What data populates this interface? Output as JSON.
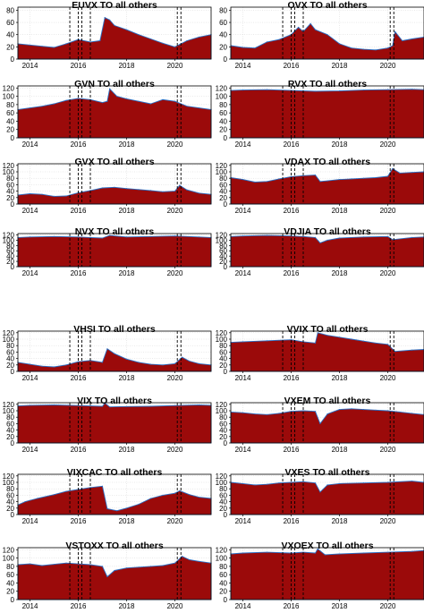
{
  "chart_data": [
    {
      "type": "area",
      "title": "EUVX TO all others",
      "yticks": [
        0,
        20,
        40,
        60,
        80
      ],
      "ylim": [
        0,
        85
      ],
      "xticks": [
        2014,
        2016,
        2018,
        2020
      ],
      "xlim": [
        2013.5,
        2021.5
      ],
      "event_lines": [
        2015.65,
        2016.0,
        2016.15,
        2016.5,
        2020.1,
        2020.25
      ],
      "series": [
        {
          "x": [
            2013.5,
            2014,
            2014.5,
            2015,
            2015.5,
            2016,
            2016.5,
            2016.9,
            2017.1,
            2017.3,
            2017.5,
            2018,
            2018.5,
            2019,
            2019.5,
            2020,
            2020.2,
            2020.5,
            2021,
            2021.5
          ],
          "values": [
            25,
            23,
            21,
            19,
            25,
            32,
            28,
            30,
            68,
            64,
            55,
            48,
            40,
            33,
            26,
            20,
            24,
            30,
            36,
            40
          ]
        }
      ]
    },
    {
      "type": "area",
      "title": "OVX TO all others",
      "yticks": [
        0,
        20,
        40,
        60,
        80
      ],
      "ylim": [
        0,
        85
      ],
      "xticks": [
        2014,
        2016,
        2018,
        2020
      ],
      "xlim": [
        2013.5,
        2021.5
      ],
      "event_lines": [
        2015.65,
        2016.0,
        2016.15,
        2016.5,
        2020.1,
        2020.25
      ],
      "series": [
        {
          "x": [
            2013.5,
            2014,
            2014.5,
            2015,
            2015.5,
            2016,
            2016.3,
            2016.5,
            2016.8,
            2017,
            2017.5,
            2018,
            2018.5,
            2019,
            2019.5,
            2020,
            2020.2,
            2020.3,
            2020.6,
            2021,
            2021.5
          ],
          "values": [
            22,
            19,
            18,
            28,
            32,
            40,
            52,
            45,
            58,
            48,
            40,
            25,
            18,
            16,
            15,
            18,
            22,
            45,
            30,
            33,
            36
          ]
        }
      ]
    },
    {
      "type": "area",
      "title": "GVN TO all others",
      "yticks": [
        0,
        20,
        40,
        60,
        80,
        100,
        120
      ],
      "ylim": [
        0,
        125
      ],
      "xticks": [
        2014,
        2016,
        2018,
        2020
      ],
      "xlim": [
        2013.5,
        2021.5
      ],
      "event_lines": [
        2015.65,
        2016.0,
        2016.15,
        2016.5,
        2020.1,
        2020.25
      ],
      "series": [
        {
          "x": [
            2013.5,
            2014,
            2014.5,
            2015,
            2015.5,
            2016,
            2016.5,
            2017,
            2017.2,
            2017.3,
            2017.6,
            2018,
            2018.5,
            2019,
            2019.5,
            2020,
            2020.5,
            2021,
            2021.5
          ],
          "values": [
            68,
            72,
            76,
            82,
            90,
            95,
            92,
            85,
            88,
            118,
            100,
            94,
            88,
            82,
            92,
            88,
            76,
            72,
            68
          ]
        }
      ]
    },
    {
      "type": "area",
      "title": "RVX TO all others",
      "yticks": [
        0,
        20,
        40,
        60,
        80,
        100,
        120
      ],
      "ylim": [
        0,
        125
      ],
      "xticks": [
        2014,
        2016,
        2018,
        2020
      ],
      "xlim": [
        2013.5,
        2021.5
      ],
      "event_lines": [
        2015.65,
        2016.0,
        2016.15,
        2016.5,
        2020.1,
        2020.25
      ],
      "series": [
        {
          "x": [
            2013.5,
            2014,
            2015,
            2016,
            2017,
            2018,
            2019,
            2020,
            2021,
            2021.5
          ],
          "values": [
            114,
            115,
            116,
            114,
            112,
            113,
            115,
            116,
            117,
            116
          ]
        }
      ]
    },
    {
      "type": "area",
      "title": "GVX TO all others",
      "yticks": [
        0,
        20,
        40,
        60,
        80,
        100,
        120
      ],
      "ylim": [
        0,
        125
      ],
      "xticks": [
        2014,
        2016,
        2018,
        2020
      ],
      "xlim": [
        2013.5,
        2021.5
      ],
      "event_lines": [
        2015.65,
        2016.0,
        2016.15,
        2016.5,
        2020.1,
        2020.25
      ],
      "series": [
        {
          "x": [
            2013.5,
            2014,
            2014.5,
            2015,
            2015.5,
            2016,
            2016.5,
            2017,
            2017.5,
            2018,
            2018.5,
            2019,
            2019.5,
            2020,
            2020.2,
            2020.5,
            2021,
            2021.5
          ],
          "values": [
            28,
            32,
            30,
            24,
            25,
            35,
            42,
            50,
            52,
            48,
            45,
            42,
            38,
            40,
            58,
            44,
            34,
            30
          ]
        }
      ]
    },
    {
      "type": "area",
      "title": "VDAX TO all others",
      "yticks": [
        0,
        20,
        40,
        60,
        80,
        100,
        120
      ],
      "ylim": [
        0,
        125
      ],
      "xticks": [
        2014,
        2016,
        2018,
        2020
      ],
      "xlim": [
        2013.5,
        2021.5
      ],
      "event_lines": [
        2015.65,
        2016.0,
        2016.15,
        2016.5,
        2020.1,
        2020.25
      ],
      "series": [
        {
          "x": [
            2013.5,
            2014,
            2014.5,
            2015,
            2015.5,
            2016,
            2016.5,
            2017,
            2017.2,
            2017.5,
            2018,
            2018.5,
            2019,
            2019.5,
            2020,
            2020.2,
            2020.5,
            2021,
            2021.5
          ],
          "values": [
            82,
            76,
            68,
            70,
            78,
            85,
            88,
            90,
            70,
            72,
            76,
            78,
            80,
            82,
            86,
            110,
            96,
            98,
            100
          ]
        }
      ]
    },
    {
      "type": "area",
      "title": "NVX TO all others",
      "yticks": [
        0,
        20,
        40,
        60,
        80,
        100,
        120
      ],
      "ylim": [
        0,
        125
      ],
      "xticks": [
        2014,
        2016,
        2018,
        2020
      ],
      "xlim": [
        2013.5,
        2021.5
      ],
      "event_lines": [
        2015.65,
        2016.0,
        2016.15,
        2016.5,
        2020.1,
        2020.25
      ],
      "series": [
        {
          "x": [
            2013.5,
            2014,
            2015,
            2016,
            2016.5,
            2017,
            2017.3,
            2018,
            2019,
            2020,
            2021,
            2021.5
          ],
          "values": [
            110,
            112,
            114,
            112,
            110,
            108,
            118,
            112,
            114,
            116,
            112,
            110
          ]
        }
      ]
    },
    {
      "type": "area",
      "title": "VDJIA TO all others",
      "yticks": [
        0,
        20,
        40,
        60,
        80,
        100,
        120
      ],
      "ylim": [
        0,
        125
      ],
      "xticks": [
        2014,
        2016,
        2018,
        2020
      ],
      "xlim": [
        2013.5,
        2021.5
      ],
      "event_lines": [
        2015.65,
        2016.0,
        2016.15,
        2016.5,
        2020.1,
        2020.25
      ],
      "series": [
        {
          "x": [
            2013.5,
            2014,
            2015,
            2016,
            2016.5,
            2017,
            2017.2,
            2017.5,
            2018,
            2019,
            2020,
            2020.2,
            2021,
            2021.5
          ],
          "values": [
            114,
            116,
            118,
            116,
            114,
            110,
            90,
            100,
            108,
            112,
            114,
            102,
            110,
            112
          ]
        }
      ]
    },
    {
      "type": "area",
      "title": "VHSI TO all others",
      "yticks": [
        0,
        20,
        40,
        60,
        80,
        100,
        120
      ],
      "ylim": [
        0,
        125
      ],
      "xticks": [
        2014,
        2016,
        2018,
        2020
      ],
      "xlim": [
        2013.5,
        2021.5
      ],
      "event_lines": [
        2015.65,
        2016.0,
        2016.15,
        2016.5,
        2020.1,
        2020.25
      ],
      "series": [
        {
          "x": [
            2013.5,
            2014,
            2014.5,
            2015,
            2015.5,
            2016,
            2016.5,
            2017,
            2017.2,
            2017.5,
            2018,
            2018.5,
            2019,
            2019.5,
            2020,
            2020.3,
            2020.6,
            2021,
            2021.5
          ],
          "values": [
            28,
            22,
            16,
            14,
            20,
            30,
            34,
            28,
            70,
            55,
            38,
            28,
            22,
            20,
            24,
            44,
            32,
            24,
            20
          ]
        }
      ]
    },
    {
      "type": "area",
      "title": "VVIX TO all others",
      "yticks": [
        0,
        20,
        40,
        60,
        80,
        100,
        120
      ],
      "ylim": [
        0,
        125
      ],
      "xticks": [
        2014,
        2016,
        2018,
        2020
      ],
      "xlim": [
        2013.5,
        2021.5
      ],
      "event_lines": [
        2015.65,
        2016.0,
        2016.15,
        2016.5,
        2020.1,
        2020.25
      ],
      "series": [
        {
          "x": [
            2013.5,
            2014,
            2015,
            2016,
            2016.5,
            2017,
            2017.1,
            2017.5,
            2018,
            2018.5,
            2019,
            2019.5,
            2020,
            2020.3,
            2021,
            2021.5
          ],
          "values": [
            90,
            92,
            95,
            98,
            92,
            88,
            120,
            112,
            106,
            100,
            94,
            88,
            84,
            62,
            66,
            68
          ]
        }
      ]
    },
    {
      "type": "area",
      "title": "VIX TO all others",
      "yticks": [
        0,
        20,
        40,
        60,
        80,
        100,
        120
      ],
      "ylim": [
        0,
        125
      ],
      "xticks": [
        2014,
        2016,
        2018,
        2020
      ],
      "xlim": [
        2013.5,
        2021.5
      ],
      "event_lines": [
        2015.65,
        2016.0,
        2016.15,
        2016.5,
        2020.1,
        2020.25
      ],
      "series": [
        {
          "x": [
            2013.5,
            2014,
            2015,
            2016,
            2017,
            2017.1,
            2017.3,
            2018,
            2019,
            2020,
            2021,
            2021.5
          ],
          "values": [
            115,
            117,
            118,
            116,
            114,
            124,
            112,
            113,
            114,
            116,
            118,
            117
          ]
        }
      ]
    },
    {
      "type": "area",
      "title": "VXEM TO all others",
      "yticks": [
        0,
        20,
        40,
        60,
        80,
        100,
        120
      ],
      "ylim": [
        0,
        125
      ],
      "xticks": [
        2014,
        2016,
        2018,
        2020
      ],
      "xlim": [
        2013.5,
        2021.5
      ],
      "event_lines": [
        2015.65,
        2016.0,
        2016.15,
        2016.5,
        2020.1,
        2020.25
      ],
      "series": [
        {
          "x": [
            2013.5,
            2014,
            2014.5,
            2015,
            2015.5,
            2016,
            2016.5,
            2017,
            2017.2,
            2017.5,
            2018,
            2018.5,
            2019,
            2019.5,
            2020,
            2020.5,
            2021,
            2021.5
          ],
          "values": [
            96,
            94,
            90,
            88,
            92,
            98,
            100,
            98,
            60,
            90,
            104,
            106,
            104,
            102,
            100,
            96,
            92,
            88
          ]
        }
      ]
    },
    {
      "type": "area",
      "title": "VIXCAC TO all others",
      "yticks": [
        0,
        20,
        40,
        60,
        80,
        100,
        120
      ],
      "ylim": [
        0,
        125
      ],
      "xticks": [
        2014,
        2016,
        2018,
        2020
      ],
      "xlim": [
        2013.5,
        2021.5
      ],
      "event_lines": [
        2015.65,
        2016.0,
        2016.15,
        2016.5,
        2020.1,
        2020.25
      ],
      "series": [
        {
          "x": [
            2013.5,
            2013.8,
            2014.3,
            2015,
            2015.5,
            2016,
            2016.5,
            2017,
            2017.2,
            2017.6,
            2018,
            2018.5,
            2019,
            2019.5,
            2020,
            2020.2,
            2020.6,
            2021,
            2021.5
          ],
          "values": [
            30,
            40,
            50,
            62,
            72,
            78,
            84,
            88,
            18,
            12,
            20,
            32,
            50,
            60,
            66,
            74,
            62,
            54,
            50
          ]
        }
      ]
    },
    {
      "type": "area",
      "title": "VXES TO all others",
      "yticks": [
        0,
        20,
        40,
        60,
        80,
        100,
        120
      ],
      "ylim": [
        0,
        125
      ],
      "xticks": [
        2014,
        2016,
        2018,
        2020
      ],
      "xlim": [
        2013.5,
        2021.5
      ],
      "event_lines": [
        2015.65,
        2016.0,
        2016.15,
        2016.5,
        2020.1,
        2020.25
      ],
      "series": [
        {
          "x": [
            2013.5,
            2014,
            2014.5,
            2015,
            2015.5,
            2016,
            2016.5,
            2017,
            2017.2,
            2017.5,
            2018,
            2019,
            2020,
            2021,
            2021.5
          ],
          "values": [
            100,
            96,
            92,
            94,
            98,
            100,
            102,
            98,
            70,
            92,
            96,
            98,
            100,
            104,
            100
          ]
        }
      ]
    },
    {
      "type": "area",
      "title": "VSTOXX TO all others",
      "yticks": [
        0,
        20,
        40,
        60,
        80,
        100,
        120
      ],
      "ylim": [
        0,
        125
      ],
      "xticks": [
        2014,
        2016,
        2018,
        2020
      ],
      "xlim": [
        2013.5,
        2021.5
      ],
      "event_lines": [
        2015.65,
        2016.0,
        2016.15,
        2016.5,
        2020.1,
        2020.25
      ],
      "series": [
        {
          "x": [
            2013.5,
            2014,
            2014.5,
            2015,
            2015.5,
            2016,
            2016.5,
            2017,
            2017.2,
            2017.5,
            2018,
            2018.5,
            2019,
            2019.5,
            2020,
            2020.3,
            2020.6,
            2021,
            2021.5
          ],
          "values": [
            84,
            86,
            82,
            85,
            88,
            86,
            84,
            80,
            55,
            70,
            76,
            78,
            80,
            82,
            88,
            104,
            96,
            92,
            88
          ]
        }
      ]
    },
    {
      "type": "area",
      "title": "VXOEX TO all others",
      "yticks": [
        0,
        20,
        40,
        60,
        80,
        100,
        120
      ],
      "ylim": [
        0,
        125
      ],
      "xticks": [
        2014,
        2016,
        2018,
        2020
      ],
      "xlim": [
        2013.5,
        2021.5
      ],
      "event_lines": [
        2015.65,
        2016.0,
        2016.15,
        2016.5,
        2020.1,
        2020.25
      ],
      "series": [
        {
          "x": [
            2013.5,
            2014,
            2015,
            2016,
            2016.5,
            2017,
            2017.1,
            2017.4,
            2018,
            2019,
            2020,
            2021,
            2021.5
          ],
          "values": [
            110,
            112,
            114,
            112,
            114,
            112,
            122,
            108,
            110,
            112,
            114,
            116,
            118
          ]
        }
      ]
    }
  ]
}
